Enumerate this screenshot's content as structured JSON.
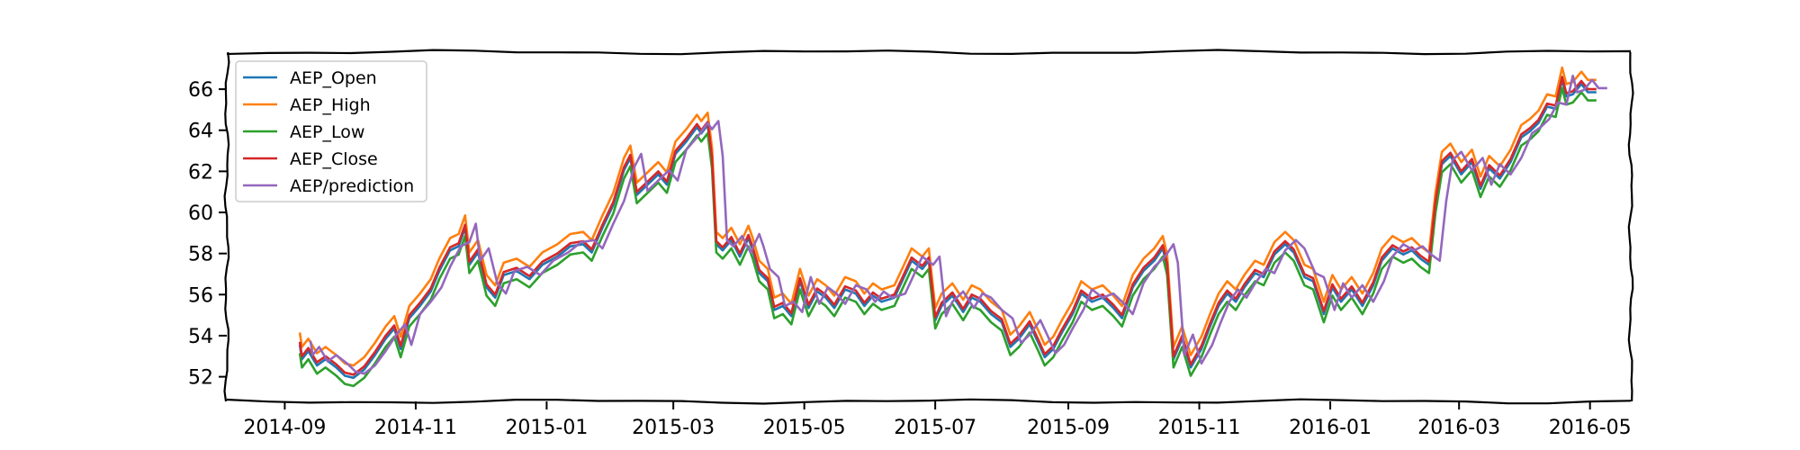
{
  "chart_data": {
    "type": "line",
    "title": "",
    "xlabel": "",
    "ylabel": "",
    "xlim": [
      "2014-08-05",
      "2016-05-20"
    ],
    "ylim": [
      50.8,
      67.8
    ],
    "x_ticks": [
      "2014-09",
      "2014-11",
      "2015-01",
      "2015-03",
      "2015-05",
      "2015-07",
      "2015-09",
      "2015-11",
      "2016-01",
      "2016-03",
      "2016-05"
    ],
    "y_ticks": [
      52,
      54,
      56,
      58,
      60,
      62,
      64,
      66
    ],
    "grid": false,
    "legend_position": "top-left",
    "series": [
      {
        "name": "AEP_Open",
        "color": "#1f77b4",
        "offset": -0.15
      },
      {
        "name": "AEP_High",
        "color": "#ff7f0e",
        "offset": 0.45
      },
      {
        "name": "AEP_Low",
        "color": "#2ca02c",
        "offset": -0.55
      },
      {
        "name": "AEP_Close",
        "color": "#d62728",
        "offset": 0.0
      },
      {
        "name": "AEP/prediction",
        "color": "#9467bd",
        "offset": 0.05,
        "lag_days": 5
      }
    ],
    "close_points": [
      [
        "2014-09-08",
        53.7
      ],
      [
        "2014-09-09",
        53.0
      ],
      [
        "2014-09-12",
        53.4
      ],
      [
        "2014-09-16",
        52.7
      ],
      [
        "2014-09-20",
        53.0
      ],
      [
        "2014-09-25",
        52.6
      ],
      [
        "2014-09-29",
        52.2
      ],
      [
        "2014-10-03",
        52.1
      ],
      [
        "2014-10-08",
        52.5
      ],
      [
        "2014-10-13",
        53.2
      ],
      [
        "2014-10-18",
        54.0
      ],
      [
        "2014-10-22",
        54.5
      ],
      [
        "2014-10-25",
        53.5
      ],
      [
        "2014-10-29",
        55.0
      ],
      [
        "2014-11-03",
        55.6
      ],
      [
        "2014-11-08",
        56.3
      ],
      [
        "2014-11-12",
        57.3
      ],
      [
        "2014-11-17",
        58.3
      ],
      [
        "2014-11-21",
        58.5
      ],
      [
        "2014-11-24",
        59.4
      ],
      [
        "2014-11-26",
        57.6
      ],
      [
        "2014-11-30",
        58.2
      ],
      [
        "2014-12-04",
        56.5
      ],
      [
        "2014-12-08",
        56.0
      ],
      [
        "2014-12-12",
        57.1
      ],
      [
        "2014-12-18",
        57.3
      ],
      [
        "2014-12-24",
        56.9
      ],
      [
        "2014-12-30",
        57.6
      ],
      [
        "2015-01-06",
        58.0
      ],
      [
        "2015-01-12",
        58.5
      ],
      [
        "2015-01-18",
        58.6
      ],
      [
        "2015-01-22",
        58.2
      ],
      [
        "2015-01-27",
        59.4
      ],
      [
        "2015-02-01",
        60.5
      ],
      [
        "2015-02-06",
        62.2
      ],
      [
        "2015-02-09",
        62.8
      ],
      [
        "2015-02-12",
        61.0
      ],
      [
        "2015-02-17",
        61.5
      ],
      [
        "2015-02-22",
        62.0
      ],
      [
        "2015-02-26",
        61.5
      ],
      [
        "2015-03-02",
        63.0
      ],
      [
        "2015-03-07",
        63.6
      ],
      [
        "2015-03-12",
        64.3
      ],
      [
        "2015-03-14",
        64.0
      ],
      [
        "2015-03-17",
        64.4
      ],
      [
        "2015-03-19",
        62.7
      ],
      [
        "2015-03-21",
        58.6
      ],
      [
        "2015-03-24",
        58.3
      ],
      [
        "2015-03-28",
        58.8
      ],
      [
        "2015-04-01",
        58.0
      ],
      [
        "2015-04-05",
        58.9
      ],
      [
        "2015-04-07",
        58.3
      ],
      [
        "2015-04-10",
        57.2
      ],
      [
        "2015-04-14",
        56.8
      ],
      [
        "2015-04-17",
        55.4
      ],
      [
        "2015-04-21",
        55.6
      ],
      [
        "2015-04-25",
        55.1
      ],
      [
        "2015-04-29",
        56.8
      ],
      [
        "2015-05-03",
        55.5
      ],
      [
        "2015-05-07",
        56.3
      ],
      [
        "2015-05-11",
        56.0
      ],
      [
        "2015-05-15",
        55.5
      ],
      [
        "2015-05-20",
        56.4
      ],
      [
        "2015-05-25",
        56.2
      ],
      [
        "2015-05-29",
        55.6
      ],
      [
        "2015-06-02",
        56.1
      ],
      [
        "2015-06-06",
        55.8
      ],
      [
        "2015-06-12",
        56.0
      ],
      [
        "2015-06-16",
        56.9
      ],
      [
        "2015-06-20",
        57.8
      ],
      [
        "2015-06-25",
        57.4
      ],
      [
        "2015-06-28",
        57.8
      ],
      [
        "2015-07-01",
        54.9
      ],
      [
        "2015-07-04",
        55.6
      ],
      [
        "2015-07-09",
        56.1
      ],
      [
        "2015-07-14",
        55.3
      ],
      [
        "2015-07-18",
        56.0
      ],
      [
        "2015-07-22",
        55.8
      ],
      [
        "2015-07-27",
        55.2
      ],
      [
        "2015-08-01",
        54.8
      ],
      [
        "2015-08-05",
        53.6
      ],
      [
        "2015-08-09",
        54.0
      ],
      [
        "2015-08-14",
        54.7
      ],
      [
        "2015-08-18",
        53.8
      ],
      [
        "2015-08-21",
        53.1
      ],
      [
        "2015-08-25",
        53.5
      ],
      [
        "2015-08-29",
        54.3
      ],
      [
        "2015-09-03",
        55.2
      ],
      [
        "2015-09-07",
        56.2
      ],
      [
        "2015-09-12",
        55.8
      ],
      [
        "2015-09-17",
        56.0
      ],
      [
        "2015-09-22",
        55.5
      ],
      [
        "2015-09-26",
        55.0
      ],
      [
        "2015-10-01",
        56.5
      ],
      [
        "2015-10-06",
        57.3
      ],
      [
        "2015-10-11",
        57.8
      ],
      [
        "2015-10-15",
        58.4
      ],
      [
        "2015-10-17",
        57.5
      ],
      [
        "2015-10-20",
        53.0
      ],
      [
        "2015-10-24",
        54.0
      ],
      [
        "2015-10-28",
        52.6
      ],
      [
        "2015-11-02",
        53.5
      ],
      [
        "2015-11-06",
        54.6
      ],
      [
        "2015-11-10",
        55.6
      ],
      [
        "2015-11-14",
        56.2
      ],
      [
        "2015-11-18",
        55.8
      ],
      [
        "2015-11-22",
        56.5
      ],
      [
        "2015-11-27",
        57.2
      ],
      [
        "2015-12-01",
        57.0
      ],
      [
        "2015-12-06",
        58.1
      ],
      [
        "2015-12-11",
        58.6
      ],
      [
        "2015-12-15",
        58.2
      ],
      [
        "2015-12-20",
        57.0
      ],
      [
        "2015-12-24",
        56.8
      ],
      [
        "2015-12-29",
        55.2
      ],
      [
        "2016-01-02",
        56.5
      ],
      [
        "2016-01-06",
        55.8
      ],
      [
        "2016-01-11",
        56.4
      ],
      [
        "2016-01-16",
        55.6
      ],
      [
        "2016-01-21",
        56.6
      ],
      [
        "2016-01-25",
        57.8
      ],
      [
        "2016-01-30",
        58.4
      ],
      [
        "2016-02-04",
        58.1
      ],
      [
        "2016-02-08",
        58.3
      ],
      [
        "2016-02-12",
        57.9
      ],
      [
        "2016-02-16",
        57.6
      ],
      [
        "2016-02-19",
        60.5
      ],
      [
        "2016-02-22",
        62.5
      ],
      [
        "2016-02-26",
        62.9
      ],
      [
        "2016-03-02",
        62.0
      ],
      [
        "2016-03-07",
        62.6
      ],
      [
        "2016-03-11",
        61.3
      ],
      [
        "2016-03-15",
        62.3
      ],
      [
        "2016-03-20",
        61.8
      ],
      [
        "2016-03-25",
        62.6
      ],
      [
        "2016-03-30",
        63.8
      ],
      [
        "2016-04-03",
        64.1
      ],
      [
        "2016-04-07",
        64.5
      ],
      [
        "2016-04-11",
        65.3
      ],
      [
        "2016-04-15",
        65.2
      ],
      [
        "2016-04-18",
        66.6
      ],
      [
        "2016-04-20",
        65.8
      ],
      [
        "2016-04-23",
        65.9
      ],
      [
        "2016-04-27",
        66.4
      ],
      [
        "2016-04-30",
        66.0
      ],
      [
        "2016-05-04",
        66.0
      ]
    ]
  }
}
